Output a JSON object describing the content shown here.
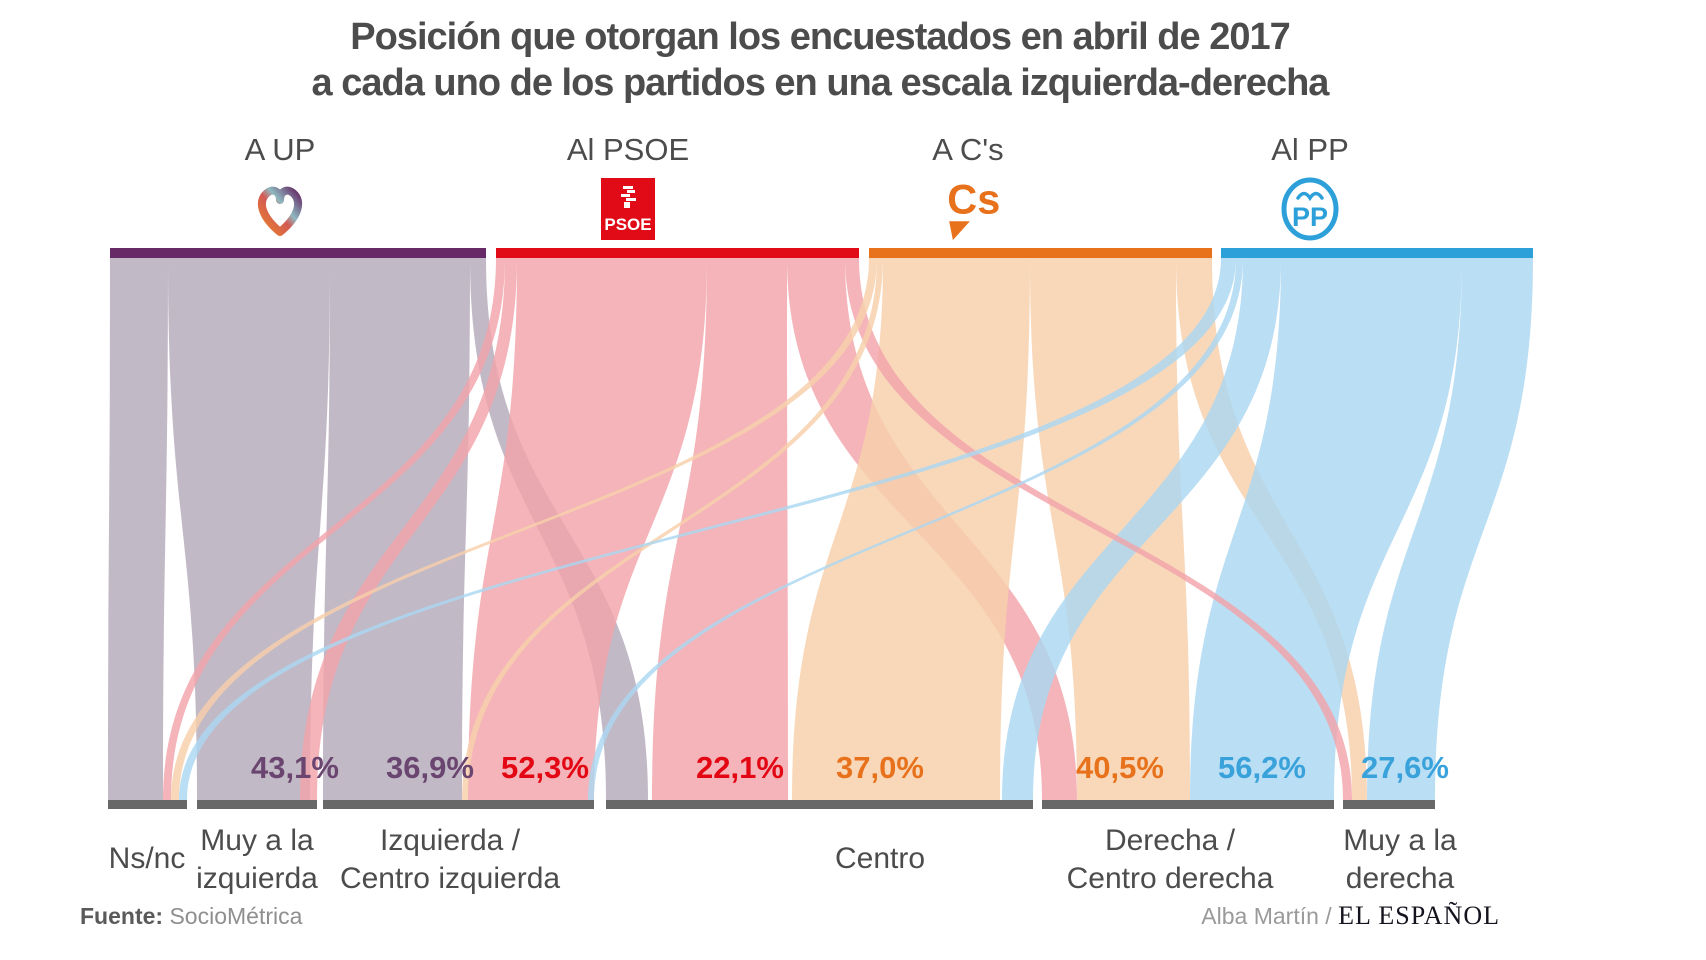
{
  "title": {
    "line1": "Posición que otorgan los encuestados en abril de 2017",
    "line2": "a cada uno de los partidos en una escala izquierda-derecha"
  },
  "parties": [
    {
      "id": "up",
      "label": "A UP",
      "bar_color": "#682a66",
      "flow_color": "#b4aab9",
      "pct_color": "#6a4570",
      "logo": "up-heart-icon"
    },
    {
      "id": "psoe",
      "label": "Al PSOE",
      "bar_color": "#e10a17",
      "flow_color": "#f2a3a9",
      "pct_color": "#e30613",
      "logo": "psoe-logo-icon"
    },
    {
      "id": "cs",
      "label": "A C's",
      "bar_color": "#e8711c",
      "flow_color": "#f8cfab",
      "pct_color": "#e8711c",
      "logo": "cs-logo-icon"
    },
    {
      "id": "pp",
      "label": "Al PP",
      "bar_color": "#2da0da",
      "flow_color": "#abd7f0",
      "pct_color": "#3aa2db",
      "logo": "pp-logo-icon"
    }
  ],
  "categories": [
    {
      "id": "nsnc",
      "lines": [
        "Ns/nc"
      ]
    },
    {
      "id": "muy-izquierda",
      "lines": [
        "Muy a la",
        "izquierda"
      ]
    },
    {
      "id": "izquierda",
      "lines": [
        "Izquierda /",
        "Centro izquierda"
      ]
    },
    {
      "id": "centro",
      "lines": [
        "Centro"
      ]
    },
    {
      "id": "derecha",
      "lines": [
        "Derecha /",
        "Centro derecha"
      ]
    },
    {
      "id": "muy-derecha",
      "lines": [
        "Muy a la",
        "derecha"
      ]
    }
  ],
  "chart_data": {
    "type": "sankey",
    "title": "Posición que otorgan los encuestados en abril de 2017 a cada uno de los partidos en una escala izquierda-derecha",
    "sources": [
      "A UP",
      "Al PSOE",
      "A C's",
      "Al PP"
    ],
    "targets": [
      "Ns/nc",
      "Muy a la izquierda",
      "Izquierda / Centro izquierda",
      "Centro",
      "Derecha / Centro derecha",
      "Muy a la derecha"
    ],
    "labeled_links": [
      {
        "source": "A UP",
        "target": "Muy a la izquierda",
        "value": "43,1%"
      },
      {
        "source": "A UP",
        "target": "Izquierda / Centro izquierda",
        "value": "36,9%"
      },
      {
        "source": "Al PSOE",
        "target": "Izquierda / Centro izquierda",
        "value": "52,3%"
      },
      {
        "source": "Al PSOE",
        "target": "Centro",
        "value": "22,1%"
      },
      {
        "source": "A C's",
        "target": "Centro",
        "value": "37,0%"
      },
      {
        "source": "A C's",
        "target": "Derecha / Centro derecha",
        "value": "40,5%"
      },
      {
        "source": "Al PP",
        "target": "Derecha / Centro derecha",
        "value": "56,2%"
      },
      {
        "source": "Al PP",
        "target": "Muy a la derecha",
        "value": "27,6%"
      }
    ],
    "unlabeled_links": [
      {
        "source": "A UP",
        "target": "Ns/nc"
      },
      {
        "source": "A UP",
        "target": "Centro"
      },
      {
        "source": "Al PSOE",
        "target": "Ns/nc"
      },
      {
        "source": "Al PSOE",
        "target": "Muy a la izquierda"
      },
      {
        "source": "Al PSOE",
        "target": "Derecha / Centro derecha"
      },
      {
        "source": "Al PSOE",
        "target": "Muy a la derecha"
      },
      {
        "source": "A C's",
        "target": "Ns/nc"
      },
      {
        "source": "A C's",
        "target": "Izquierda / Centro izquierda"
      },
      {
        "source": "A C's",
        "target": "Muy a la derecha"
      },
      {
        "source": "Al PP",
        "target": "Ns/nc"
      },
      {
        "source": "Al PP",
        "target": "Izquierda / Centro izquierda"
      },
      {
        "source": "Al PP",
        "target": "Centro"
      }
    ],
    "legend_position": "none",
    "grid": false
  },
  "footer": {
    "source_prefix": "Fuente:",
    "source_name": "SocioMétrica",
    "credit_author": "Alba Martín /",
    "credit_brand": "EL ESPAÑOL"
  }
}
